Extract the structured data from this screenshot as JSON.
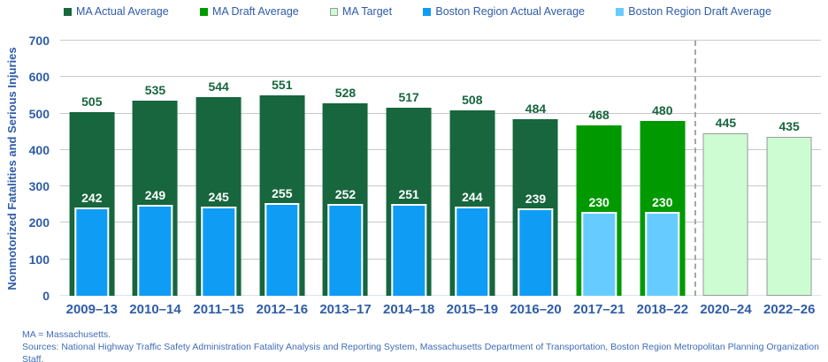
{
  "colors": {
    "ma_actual": "#17663d",
    "ma_draft": "#009a00",
    "ma_target": "#cdfbd2",
    "ma_target_border": "#9b9b9b",
    "boston_actual": "#0f9cf5",
    "boston_draft": "#66ccff",
    "axis_text": "#2e5ca6",
    "value_label_green": "#17663d",
    "value_label_white": "#ffffff",
    "gridline": "#c9c9c9",
    "separator": "#a6a6a6",
    "footer_text": "#3f6cb7"
  },
  "legend": {
    "items": [
      {
        "label": "MA Actual Average",
        "swatch": "ma_actual"
      },
      {
        "label": "MA Draft Average",
        "swatch": "ma_draft"
      },
      {
        "label": "MA Target",
        "swatch": "ma_target"
      },
      {
        "label": "Boston Region Actual Average",
        "swatch": "boston_actual"
      },
      {
        "label": "Boston Region Draft Average",
        "swatch": "boston_draft"
      }
    ]
  },
  "chart_data": {
    "type": "bar",
    "title": "",
    "ylabel": "Nonmotorized Fatalities and Serious Injuries",
    "xlabel": "",
    "ylim": [
      0,
      700
    ],
    "yticks": [
      0,
      100,
      200,
      300,
      400,
      500,
      600,
      700
    ],
    "grid": true,
    "legend_position": "top",
    "categories": [
      "2009–13",
      "2010–14",
      "2011–15",
      "2012–16",
      "2013–17",
      "2014–18",
      "2015–19",
      "2016–20",
      "2017–21",
      "2018–22",
      "2020–24",
      "2022–26"
    ],
    "series": [
      {
        "name": "MA",
        "values": [
          505,
          535,
          544,
          551,
          528,
          517,
          508,
          484,
          468,
          480,
          445,
          435
        ],
        "types": [
          "actual",
          "actual",
          "actual",
          "actual",
          "actual",
          "actual",
          "actual",
          "actual",
          "draft",
          "draft",
          "target",
          "target"
        ]
      },
      {
        "name": "Boston Region",
        "values": [
          242,
          249,
          245,
          255,
          252,
          251,
          244,
          239,
          230,
          230,
          null,
          null
        ],
        "types": [
          "actual",
          "actual",
          "actual",
          "actual",
          "actual",
          "actual",
          "actual",
          "actual",
          "draft",
          "draft",
          null,
          null
        ]
      }
    ],
    "separator_after_index": 9
  },
  "footer": {
    "line1": "MA = Massachusetts.",
    "line2": "Sources: National Highway Traffic Safety Administration Fatality Analysis and Reporting System, Massachusetts Department of Transportation, Boston Region Metropolitan Planning Organization Staff."
  }
}
